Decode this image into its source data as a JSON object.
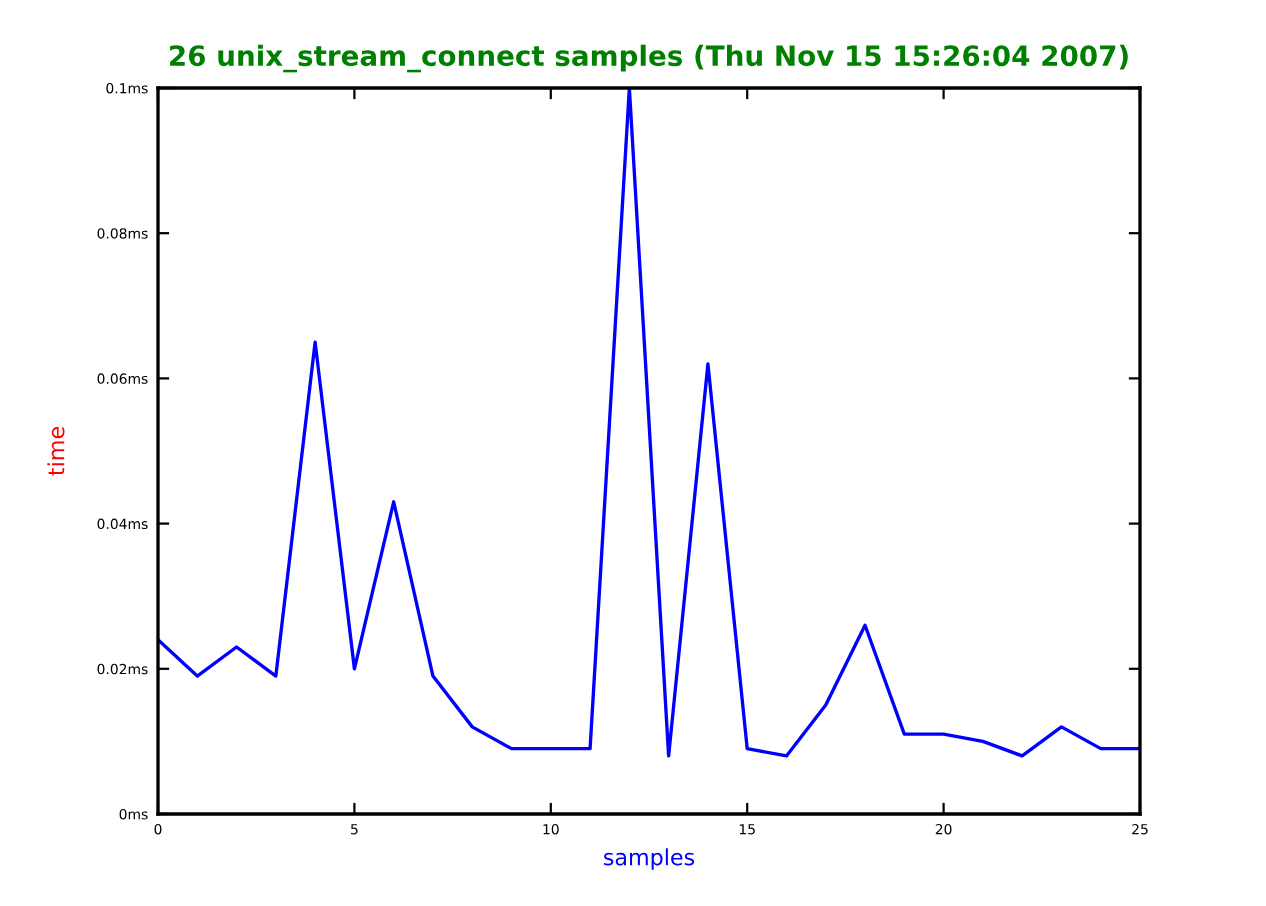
{
  "chart_data": {
    "type": "line",
    "title": "26 unix_stream_connect samples (Thu Nov 15 15:26:04 2007)",
    "xlabel": "samples",
    "ylabel": "time",
    "x": [
      0,
      1,
      2,
      3,
      4,
      5,
      6,
      7,
      8,
      9,
      10,
      11,
      12,
      13,
      14,
      15,
      16,
      17,
      18,
      19,
      20,
      21,
      22,
      23,
      24,
      25
    ],
    "series": [
      {
        "color": "#0000ff",
        "values": [
          0.024,
          0.019,
          0.023,
          0.019,
          0.065,
          0.02,
          0.043,
          0.019,
          0.012,
          0.009,
          0.009,
          0.009,
          0.1,
          0.008,
          0.062,
          0.009,
          0.008,
          0.015,
          0.026,
          0.011,
          0.011,
          0.01,
          0.008,
          0.012,
          0.009,
          0.009
        ]
      }
    ],
    "xlim": [
      0,
      25
    ],
    "xticks": [
      0,
      5,
      10,
      15,
      20,
      25
    ],
    "ylim": [
      0,
      0.1
    ],
    "yticks": [
      {
        "value": 0,
        "label": "0ms"
      },
      {
        "value": 0.02,
        "label": "0.02ms"
      },
      {
        "value": 0.04,
        "label": "0.04ms"
      },
      {
        "value": 0.06,
        "label": "0.06ms"
      },
      {
        "value": 0.08,
        "label": "0.08ms"
      },
      {
        "value": 0.1,
        "label": "0.1ms"
      }
    ],
    "grid": false,
    "legend": false
  }
}
